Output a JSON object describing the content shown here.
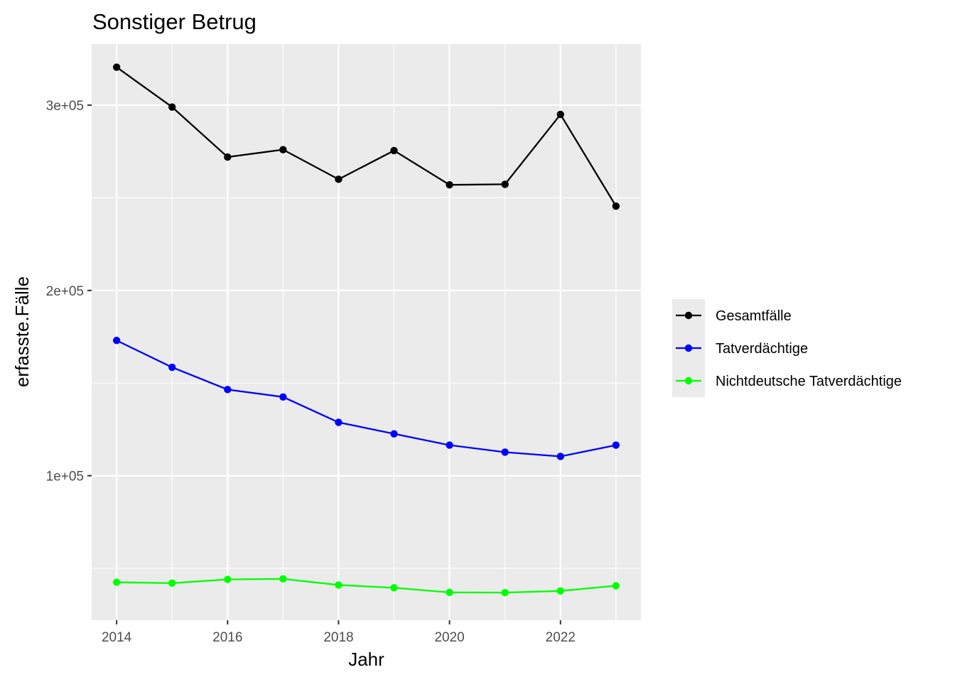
{
  "chart_data": {
    "type": "line",
    "title": "Sonstiger Betrug",
    "xlabel": "Jahr",
    "ylabel": "erfasste.Fälle",
    "x": [
      2014,
      2015,
      2016,
      2017,
      2018,
      2019,
      2020,
      2021,
      2022,
      2023
    ],
    "xlim": [
      2013.55,
      2023.45
    ],
    "ylim": [
      22000,
      333000
    ],
    "x_ticks": [
      2014,
      2016,
      2018,
      2020,
      2022
    ],
    "x_tick_labels": [
      "2014",
      "2016",
      "2018",
      "2020",
      "2022"
    ],
    "y_ticks": [
      100000,
      200000,
      300000
    ],
    "y_tick_labels": [
      "1e+05",
      "2e+05",
      "3e+05"
    ],
    "y_minor_ticks": [
      50000,
      150000,
      250000
    ],
    "grid": true,
    "legend_position": "right",
    "series": [
      {
        "name": "Gesamtfälle",
        "color": "#000000",
        "values": [
          320500,
          299000,
          272000,
          276000,
          260000,
          275500,
          257000,
          257300,
          295000,
          245500
        ]
      },
      {
        "name": "Tatverdächtige",
        "color": "#0000ff",
        "values": [
          173000,
          158500,
          146500,
          142500,
          128800,
          122600,
          116500,
          112700,
          110400,
          116500
        ]
      },
      {
        "name": "Nichtdeutsche Tatverdächtige",
        "color": "#00ff00",
        "values": [
          42500,
          42000,
          44000,
          44300,
          41000,
          39500,
          37000,
          36900,
          37800,
          40600
        ]
      }
    ]
  }
}
